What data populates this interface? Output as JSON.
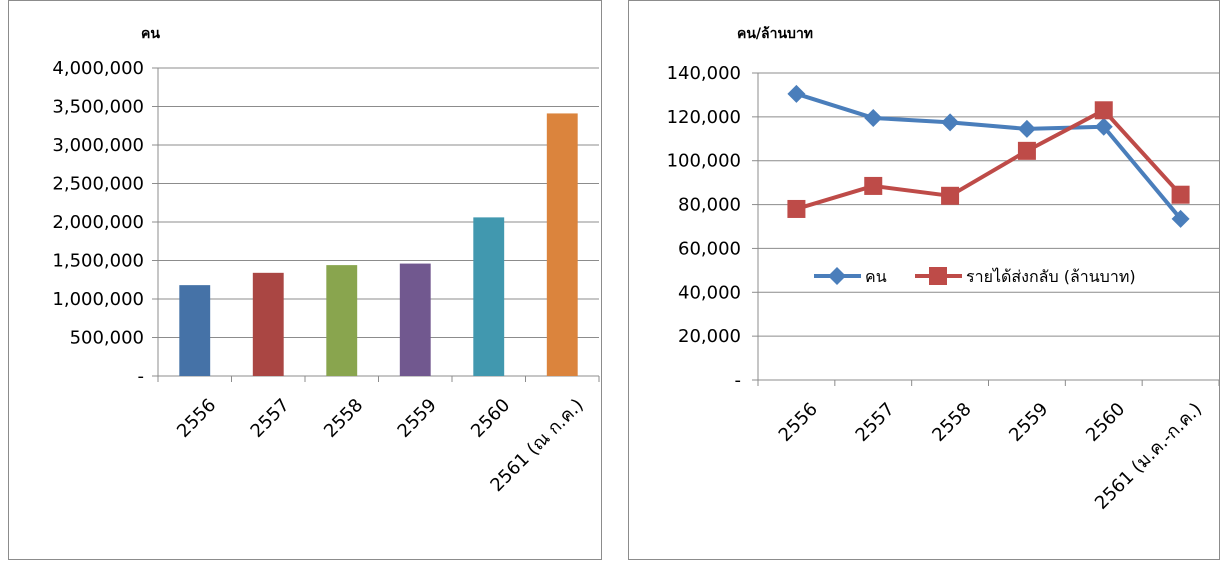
{
  "chart_data": [
    {
      "type": "bar",
      "ylabel": "คน",
      "categories": [
        "2556",
        "2557",
        "2558",
        "2559",
        "2560",
        "2561 (ณ ก.ค.)"
      ],
      "values": [
        1180000,
        1340000,
        1440000,
        1460000,
        2060000,
        3410000
      ],
      "colors": [
        "#4572a7",
        "#aa4643",
        "#89a54e",
        "#71588f",
        "#4198af",
        "#db843d"
      ],
      "ylim": [
        0,
        4000000
      ],
      "yticks": [
        "-",
        "500,000",
        "1,000,000",
        "1,500,000",
        "2,000,000",
        "2,500,000",
        "3,000,000",
        "3,500,000",
        "4,000,000"
      ],
      "grid": true,
      "legend": null
    },
    {
      "type": "line",
      "ylabel": "คน/ล้านบาท",
      "categories": [
        "2556",
        "2557",
        "2558",
        "2559",
        "2560",
        "2561 (ม.ค.-ก.ค.)"
      ],
      "ylim": [
        0,
        140000
      ],
      "yticks": [
        "-",
        "20,000",
        "40,000",
        "60,000",
        "80,000",
        "100,000",
        "120,000",
        "140,000"
      ],
      "grid": true,
      "legend": "center-right",
      "series": [
        {
          "name": "คน",
          "values": [
            130500,
            119500,
            117500,
            114500,
            115500,
            73500
          ],
          "color": "#4a7ebb",
          "marker": "diamond"
        },
        {
          "name": "รายได้ส่งกลับ (ล้านบาท)",
          "values": [
            78000,
            88500,
            84000,
            104500,
            123000,
            84500
          ],
          "color": "#be4b48",
          "marker": "square"
        }
      ]
    }
  ]
}
